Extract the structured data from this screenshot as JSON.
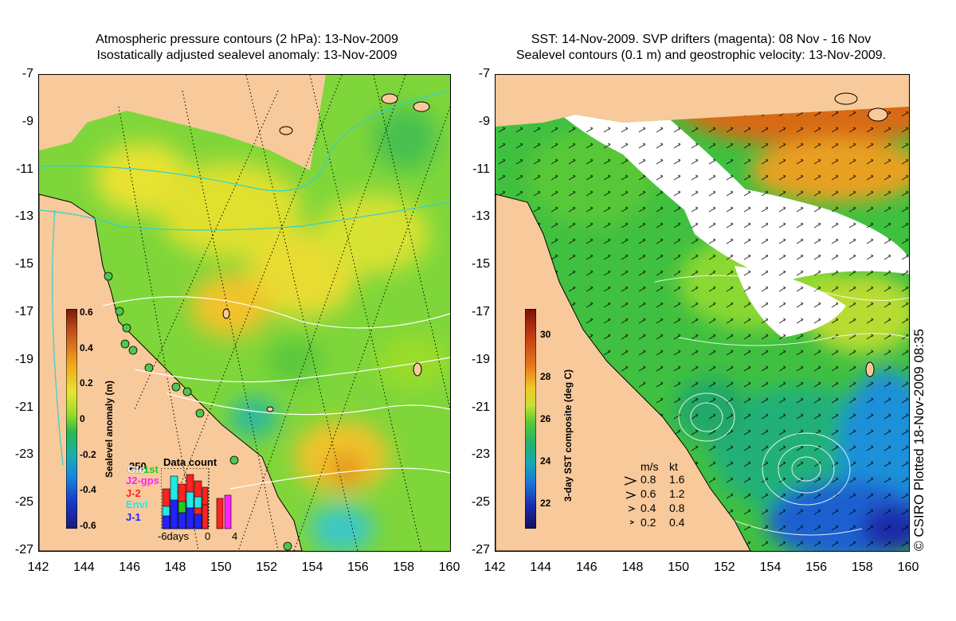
{
  "left_panel": {
    "title_line1": "Atmospheric pressure contours (2 hPa): 13-Nov-2009",
    "title_line2": "Isostatically adjusted sealevel anomaly: 13-Nov-2009",
    "colorbar": {
      "label": "Sealevel anomaly (m)",
      "ticks": [
        "0.6",
        "0.4",
        "0.2",
        "0",
        "-0.2",
        "-0.4",
        "-0.6"
      ],
      "colors": [
        "#7a1a08",
        "#c0501a",
        "#f2a41c",
        "#e8e432",
        "#9adc2a",
        "#2ab84a",
        "#18b0a8",
        "#1a88e0",
        "#1838c8",
        "#1a1a78"
      ]
    },
    "data_count": {
      "title": "Data count",
      "top_value": "250",
      "x_labels": [
        "-6days",
        "0",
        "4"
      ],
      "missions": [
        {
          "name": "Gfo",
          "color": "#ffffff"
        },
        {
          "name": "1st",
          "color": "#22cc22"
        },
        {
          "name": "J2-gps",
          "color": "#ff22ff"
        },
        {
          "name": "J-2",
          "color": "#ff2222"
        },
        {
          "name": "Envi",
          "color": "#22e8e8"
        },
        {
          "name": "J-1",
          "color": "#2222ff"
        }
      ]
    }
  },
  "right_panel": {
    "title_line1": "SST: 14-Nov-2009. SVP drifters (magenta): 08 Nov - 16 Nov",
    "title_line2": "Sealevel contours (0.1 m) and geostrophic velocity: 13-Nov-2009.",
    "colorbar": {
      "label": "3-day SST composite (deg C)",
      "ticks": [
        "30",
        "28",
        "26",
        "24",
        "22"
      ],
      "colors": [
        "#7a1208",
        "#c23a14",
        "#e8781a",
        "#f0c828",
        "#c8e030",
        "#52c83a",
        "#20b070",
        "#18a8b8",
        "#1a70d8",
        "#1a2aa8",
        "#101060"
      ]
    },
    "velocity_legend": {
      "header_ms": "m/s",
      "header_kt": "kt",
      "rows": [
        {
          "ms": "0.8",
          "kt": "1.6"
        },
        {
          "ms": "0.6",
          "kt": "1.2"
        },
        {
          "ms": "0.4",
          "kt": "0.8"
        },
        {
          "ms": "0.2",
          "kt": "0.4"
        }
      ]
    }
  },
  "axes": {
    "x_ticks": [
      "142",
      "144",
      "146",
      "148",
      "150",
      "152",
      "154",
      "156",
      "158",
      "160"
    ],
    "y_ticks": [
      "-7",
      "-9",
      "-11",
      "-13",
      "-15",
      "-17",
      "-19",
      "-21",
      "-23",
      "-25",
      "-27"
    ]
  },
  "credit": "© CSIRO Plotted 18-Nov-2009 08:35"
}
